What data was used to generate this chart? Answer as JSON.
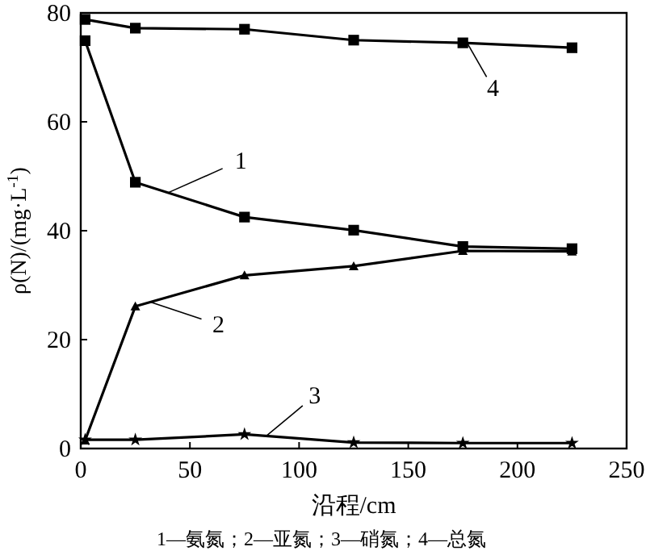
{
  "chart_data": {
    "type": "line",
    "xlabel": "沿程/cm",
    "ylabel": "ρ(N)/(mg·L$^{-1}$)",
    "x": [
      2,
      25,
      75,
      125,
      175,
      225
    ],
    "series": [
      {
        "name": "1",
        "color": "#000000",
        "marker": "square",
        "values": [
          74.9,
          48.9,
          42.5,
          40.1,
          37.1,
          36.7
        ]
      },
      {
        "name": "2",
        "color": "#000000",
        "marker": "triangle",
        "values": [
          1.5,
          26.1,
          31.8,
          33.5,
          36.3,
          36.2
        ]
      },
      {
        "name": "3",
        "color": "#000000",
        "marker": "star",
        "values": [
          1.6,
          1.6,
          2.6,
          1.1,
          1.0,
          1.0
        ]
      },
      {
        "name": "4",
        "color": "#000000",
        "marker": "square",
        "values": [
          78.8,
          77.2,
          77.0,
          75.0,
          74.5,
          73.6
        ]
      }
    ],
    "xlim": [
      0,
      250
    ],
    "xticks": [
      0,
      50,
      100,
      150,
      200,
      250
    ],
    "ylim": [
      0,
      80
    ],
    "yticks": [
      0,
      20,
      40,
      60,
      80
    ],
    "grid": false,
    "annotations": [
      "1—氨氮；2—亚氮；3—硝氮；4—总氮"
    ]
  }
}
